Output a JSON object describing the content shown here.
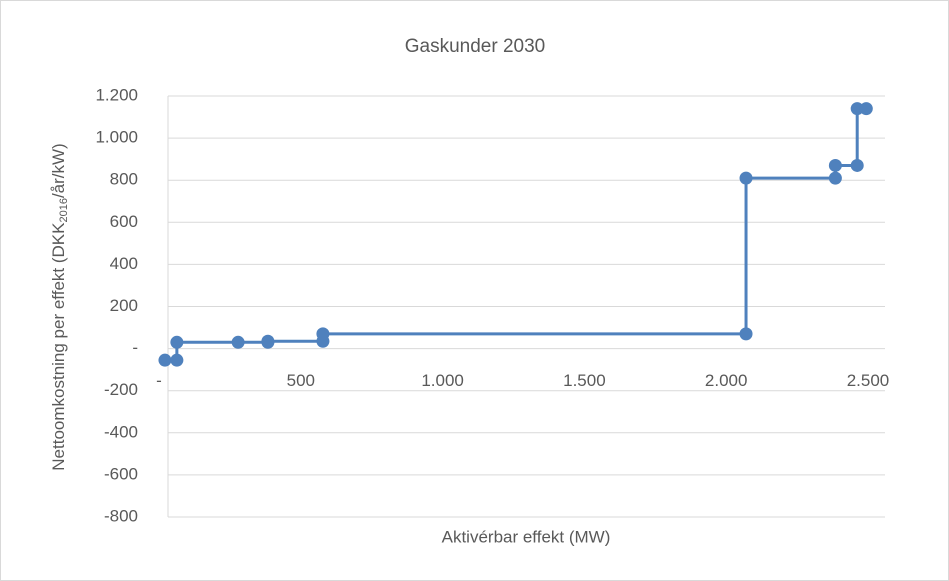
{
  "chart_data": {
    "type": "line",
    "title": "Gaskunder 2030",
    "x_label": "Aktivérbar effekt (MW)",
    "y_label": [
      "Nettoomkostning per effekt (DKK",
      "2016",
      "/år/kW)"
    ],
    "xlim": [
      0,
      2560
    ],
    "ylim": [
      -800,
      1200
    ],
    "xticks": [
      {
        "value": 0,
        "label": "-"
      },
      500,
      {
        "value": 1000,
        "label": "1.000"
      },
      {
        "value": 1500,
        "label": "1.500"
      },
      {
        "value": 2000,
        "label": "2.000"
      },
      {
        "value": 2500,
        "label": "2.500"
      }
    ],
    "yticks": [
      {
        "value": 1200,
        "label": "1.200"
      },
      {
        "value": 1000,
        "label": "1.000"
      },
      800,
      600,
      400,
      200,
      {
        "value": 0,
        "label": "-"
      },
      -200,
      -400,
      -600,
      -800
    ],
    "grid": true,
    "series": [
      {
        "color": "#4f81bd",
        "x": [
          21,
          63,
          63,
          279,
          384,
          384,
          578,
          578,
          2070,
          2070,
          2385,
          2385,
          2462,
          2462,
          2494
        ],
        "values": [
          -55,
          -55,
          30,
          30,
          30,
          35,
          35,
          70,
          70,
          810,
          810,
          870,
          870,
          1140,
          1140
        ]
      }
    ]
  }
}
